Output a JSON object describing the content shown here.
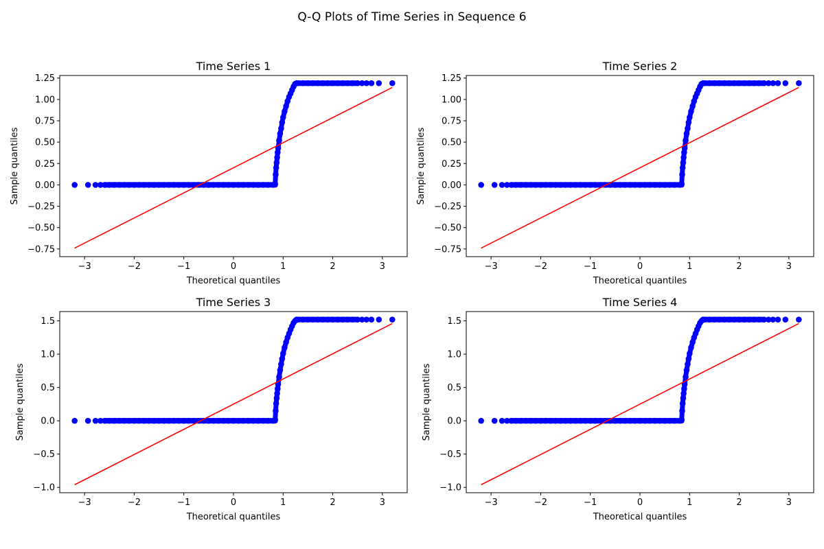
{
  "figure": {
    "title": "Q-Q Plots of Time Series in Sequence 6"
  },
  "style": {
    "point_color": "#0000ff",
    "line_color": "#ff0000",
    "axes_color": "#000000",
    "background": "#ffffff"
  },
  "chart_data": [
    {
      "type": "scatter",
      "title": "Time Series 1",
      "xlabel": "Theoretical quantiles",
      "ylabel": "Sample quantiles",
      "xlim": [
        -3.5,
        3.5
      ],
      "ylim": [
        -0.84,
        1.28
      ],
      "xticks": [
        -3,
        -2,
        -1,
        0,
        1,
        2,
        3
      ],
      "xtick_labels": [
        "−3",
        "−2",
        "−1",
        "0",
        "1",
        "2",
        "3"
      ],
      "yticks": [
        -0.75,
        -0.5,
        -0.25,
        0.0,
        0.25,
        0.5,
        0.75,
        1.0,
        1.25
      ],
      "ytick_labels": [
        "−0.75",
        "−0.50",
        "−0.25",
        "0.00",
        "0.25",
        "0.50",
        "0.75",
        "1.00",
        "1.25"
      ],
      "sample_max": 1.19,
      "points": {
        "x": [
          -3.2,
          -2.93,
          -2.78,
          -2.68,
          -2.59,
          -2.5,
          -2.4,
          -2.3,
          -2.2,
          -2.1,
          -2.0,
          -1.9,
          -1.8,
          -1.7,
          -1.6,
          -1.5,
          -1.4,
          -1.3,
          -1.2,
          -1.1,
          -1.0,
          -0.9,
          -0.8,
          -0.7,
          -0.6,
          -0.5,
          -0.4,
          -0.3,
          -0.2,
          -0.1,
          0.0,
          0.1,
          0.2,
          0.3,
          0.4,
          0.5,
          0.6,
          0.7,
          0.8,
          0.84,
          0.85,
          0.86,
          0.87,
          0.88,
          0.89,
          0.9,
          0.92,
          0.94,
          0.96,
          0.98,
          1.0,
          1.03,
          1.06,
          1.09,
          1.12,
          1.15,
          1.18,
          1.21,
          1.24,
          1.27,
          1.3,
          1.4,
          1.5,
          1.6,
          1.7,
          1.8,
          1.9,
          2.0,
          2.1,
          2.2,
          2.3,
          2.4,
          2.5,
          2.59,
          2.68,
          2.78,
          2.93,
          3.2
        ],
        "y": [
          0.0,
          0.0,
          0.0,
          0.0,
          0.0,
          0.0,
          0.0,
          0.0,
          0.0,
          0.0,
          0.0,
          0.0,
          0.0,
          0.0,
          0.0,
          0.0,
          0.0,
          0.0,
          0.0,
          0.0,
          0.0,
          0.0,
          0.0,
          0.0,
          0.0,
          0.0,
          0.0,
          0.0,
          0.0,
          0.0,
          0.0,
          0.0,
          0.0,
          0.0,
          0.0,
          0.0,
          0.0,
          0.0,
          0.0,
          0.01,
          0.12,
          0.2,
          0.26,
          0.32,
          0.38,
          0.43,
          0.52,
          0.6,
          0.66,
          0.73,
          0.79,
          0.86,
          0.92,
          0.98,
          1.03,
          1.07,
          1.11,
          1.15,
          1.18,
          1.19,
          1.19,
          1.19,
          1.19,
          1.19,
          1.19,
          1.19,
          1.19,
          1.19,
          1.19,
          1.19,
          1.19,
          1.19,
          1.19,
          1.19,
          1.19,
          1.19,
          1.19,
          1.19
        ]
      },
      "reference_line": {
        "x": [
          -3.2,
          3.2
        ],
        "y": [
          -0.74,
          1.14
        ]
      }
    },
    {
      "type": "scatter",
      "title": "Time Series 2",
      "xlabel": "Theoretical quantiles",
      "ylabel": "Sample quantiles",
      "xlim": [
        -3.5,
        3.5
      ],
      "ylim": [
        -0.84,
        1.28
      ],
      "xticks": [
        -3,
        -2,
        -1,
        0,
        1,
        2,
        3
      ],
      "xtick_labels": [
        "−3",
        "−2",
        "−1",
        "0",
        "1",
        "2",
        "3"
      ],
      "yticks": [
        -0.75,
        -0.5,
        -0.25,
        0.0,
        0.25,
        0.5,
        0.75,
        1.0,
        1.25
      ],
      "ytick_labels": [
        "−0.75",
        "−0.50",
        "−0.25",
        "0.00",
        "0.25",
        "0.50",
        "0.75",
        "1.00",
        "1.25"
      ],
      "sample_max": 1.19,
      "points": {
        "x": [
          -3.2,
          -2.93,
          -2.78,
          -2.68,
          -2.59,
          -2.5,
          -2.4,
          -2.3,
          -2.2,
          -2.1,
          -2.0,
          -1.9,
          -1.8,
          -1.7,
          -1.6,
          -1.5,
          -1.4,
          -1.3,
          -1.2,
          -1.1,
          -1.0,
          -0.9,
          -0.8,
          -0.7,
          -0.6,
          -0.5,
          -0.4,
          -0.3,
          -0.2,
          -0.1,
          0.0,
          0.1,
          0.2,
          0.3,
          0.4,
          0.5,
          0.6,
          0.7,
          0.8,
          0.84,
          0.85,
          0.86,
          0.87,
          0.88,
          0.89,
          0.9,
          0.92,
          0.94,
          0.96,
          0.98,
          1.0,
          1.03,
          1.06,
          1.09,
          1.12,
          1.15,
          1.18,
          1.21,
          1.24,
          1.27,
          1.3,
          1.4,
          1.5,
          1.6,
          1.7,
          1.8,
          1.9,
          2.0,
          2.1,
          2.2,
          2.3,
          2.4,
          2.5,
          2.59,
          2.68,
          2.78,
          2.93,
          3.2
        ],
        "y": [
          0.0,
          0.0,
          0.0,
          0.0,
          0.0,
          0.0,
          0.0,
          0.0,
          0.0,
          0.0,
          0.0,
          0.0,
          0.0,
          0.0,
          0.0,
          0.0,
          0.0,
          0.0,
          0.0,
          0.0,
          0.0,
          0.0,
          0.0,
          0.0,
          0.0,
          0.0,
          0.0,
          0.0,
          0.0,
          0.0,
          0.0,
          0.0,
          0.0,
          0.0,
          0.0,
          0.0,
          0.0,
          0.0,
          0.0,
          0.01,
          0.12,
          0.2,
          0.26,
          0.32,
          0.38,
          0.43,
          0.52,
          0.6,
          0.66,
          0.73,
          0.79,
          0.86,
          0.92,
          0.98,
          1.03,
          1.07,
          1.11,
          1.15,
          1.18,
          1.19,
          1.19,
          1.19,
          1.19,
          1.19,
          1.19,
          1.19,
          1.19,
          1.19,
          1.19,
          1.19,
          1.19,
          1.19,
          1.19,
          1.19,
          1.19,
          1.19,
          1.19,
          1.19
        ]
      },
      "reference_line": {
        "x": [
          -3.2,
          3.2
        ],
        "y": [
          -0.74,
          1.14
        ]
      }
    },
    {
      "type": "scatter",
      "title": "Time Series 3",
      "xlabel": "Theoretical quantiles",
      "ylabel": "Sample quantiles",
      "xlim": [
        -3.5,
        3.5
      ],
      "ylim": [
        -1.08,
        1.64
      ],
      "xticks": [
        -3,
        -2,
        -1,
        0,
        1,
        2,
        3
      ],
      "xtick_labels": [
        "−3",
        "−2",
        "−1",
        "0",
        "1",
        "2",
        "3"
      ],
      "yticks": [
        -1.0,
        -0.5,
        0.0,
        0.5,
        1.0,
        1.5
      ],
      "ytick_labels": [
        "−1.0",
        "−0.5",
        "0.0",
        "0.5",
        "1.0",
        "1.5"
      ],
      "sample_max": 1.52,
      "points": {
        "x": [
          -3.2,
          -2.93,
          -2.78,
          -2.68,
          -2.59,
          -2.5,
          -2.4,
          -2.3,
          -2.2,
          -2.1,
          -2.0,
          -1.9,
          -1.8,
          -1.7,
          -1.6,
          -1.5,
          -1.4,
          -1.3,
          -1.2,
          -1.1,
          -1.0,
          -0.9,
          -0.8,
          -0.7,
          -0.6,
          -0.5,
          -0.4,
          -0.3,
          -0.2,
          -0.1,
          0.0,
          0.1,
          0.2,
          0.3,
          0.4,
          0.5,
          0.6,
          0.7,
          0.8,
          0.84,
          0.85,
          0.86,
          0.87,
          0.88,
          0.89,
          0.9,
          0.92,
          0.94,
          0.96,
          0.98,
          1.0,
          1.03,
          1.06,
          1.09,
          1.12,
          1.15,
          1.18,
          1.21,
          1.24,
          1.27,
          1.3,
          1.4,
          1.5,
          1.6,
          1.7,
          1.8,
          1.9,
          2.0,
          2.1,
          2.2,
          2.3,
          2.4,
          2.5,
          2.59,
          2.68,
          2.78,
          2.93,
          3.2
        ],
        "y": [
          0.0,
          0.0,
          0.0,
          0.0,
          0.0,
          0.0,
          0.0,
          0.0,
          0.0,
          0.0,
          0.0,
          0.0,
          0.0,
          0.0,
          0.0,
          0.0,
          0.0,
          0.0,
          0.0,
          0.0,
          0.0,
          0.0,
          0.0,
          0.0,
          0.0,
          0.0,
          0.0,
          0.0,
          0.0,
          0.0,
          0.0,
          0.0,
          0.0,
          0.0,
          0.0,
          0.0,
          0.0,
          0.0,
          0.0,
          0.02,
          0.15,
          0.26,
          0.34,
          0.41,
          0.48,
          0.55,
          0.66,
          0.76,
          0.85,
          0.93,
          1.01,
          1.1,
          1.18,
          1.25,
          1.31,
          1.37,
          1.42,
          1.47,
          1.5,
          1.52,
          1.52,
          1.52,
          1.52,
          1.52,
          1.52,
          1.52,
          1.52,
          1.52,
          1.52,
          1.52,
          1.52,
          1.52,
          1.52,
          1.52,
          1.52,
          1.52,
          1.52,
          1.52
        ]
      },
      "reference_line": {
        "x": [
          -3.2,
          3.2
        ],
        "y": [
          -0.96,
          1.46
        ]
      }
    },
    {
      "type": "scatter",
      "title": "Time Series 4",
      "xlabel": "Theoretical quantiles",
      "ylabel": "Sample quantiles",
      "xlim": [
        -3.5,
        3.5
      ],
      "ylim": [
        -1.08,
        1.64
      ],
      "xticks": [
        -3,
        -2,
        -1,
        0,
        1,
        2,
        3
      ],
      "xtick_labels": [
        "−3",
        "−2",
        "−1",
        "0",
        "1",
        "2",
        "3"
      ],
      "yticks": [
        -1.0,
        -0.5,
        0.0,
        0.5,
        1.0,
        1.5
      ],
      "ytick_labels": [
        "−1.0",
        "−0.5",
        "0.0",
        "0.5",
        "1.0",
        "1.5"
      ],
      "sample_max": 1.52,
      "points": {
        "x": [
          -3.2,
          -2.93,
          -2.78,
          -2.68,
          -2.59,
          -2.5,
          -2.4,
          -2.3,
          -2.2,
          -2.1,
          -2.0,
          -1.9,
          -1.8,
          -1.7,
          -1.6,
          -1.5,
          -1.4,
          -1.3,
          -1.2,
          -1.1,
          -1.0,
          -0.9,
          -0.8,
          -0.7,
          -0.6,
          -0.5,
          -0.4,
          -0.3,
          -0.2,
          -0.1,
          0.0,
          0.1,
          0.2,
          0.3,
          0.4,
          0.5,
          0.6,
          0.7,
          0.8,
          0.84,
          0.85,
          0.86,
          0.87,
          0.88,
          0.89,
          0.9,
          0.92,
          0.94,
          0.96,
          0.98,
          1.0,
          1.03,
          1.06,
          1.09,
          1.12,
          1.15,
          1.18,
          1.21,
          1.24,
          1.27,
          1.3,
          1.4,
          1.5,
          1.6,
          1.7,
          1.8,
          1.9,
          2.0,
          2.1,
          2.2,
          2.3,
          2.4,
          2.5,
          2.59,
          2.68,
          2.78,
          2.93,
          3.2
        ],
        "y": [
          0.0,
          0.0,
          0.0,
          0.0,
          0.0,
          0.0,
          0.0,
          0.0,
          0.0,
          0.0,
          0.0,
          0.0,
          0.0,
          0.0,
          0.0,
          0.0,
          0.0,
          0.0,
          0.0,
          0.0,
          0.0,
          0.0,
          0.0,
          0.0,
          0.0,
          0.0,
          0.0,
          0.0,
          0.0,
          0.0,
          0.0,
          0.0,
          0.0,
          0.0,
          0.0,
          0.0,
          0.0,
          0.0,
          0.0,
          0.02,
          0.15,
          0.26,
          0.34,
          0.41,
          0.48,
          0.55,
          0.66,
          0.76,
          0.85,
          0.93,
          1.01,
          1.1,
          1.18,
          1.25,
          1.31,
          1.37,
          1.42,
          1.47,
          1.5,
          1.52,
          1.52,
          1.52,
          1.52,
          1.52,
          1.52,
          1.52,
          1.52,
          1.52,
          1.52,
          1.52,
          1.52,
          1.52,
          1.52,
          1.52,
          1.52,
          1.52,
          1.52,
          1.52
        ]
      },
      "reference_line": {
        "x": [
          -3.2,
          3.2
        ],
        "y": [
          -0.96,
          1.46
        ]
      }
    }
  ]
}
